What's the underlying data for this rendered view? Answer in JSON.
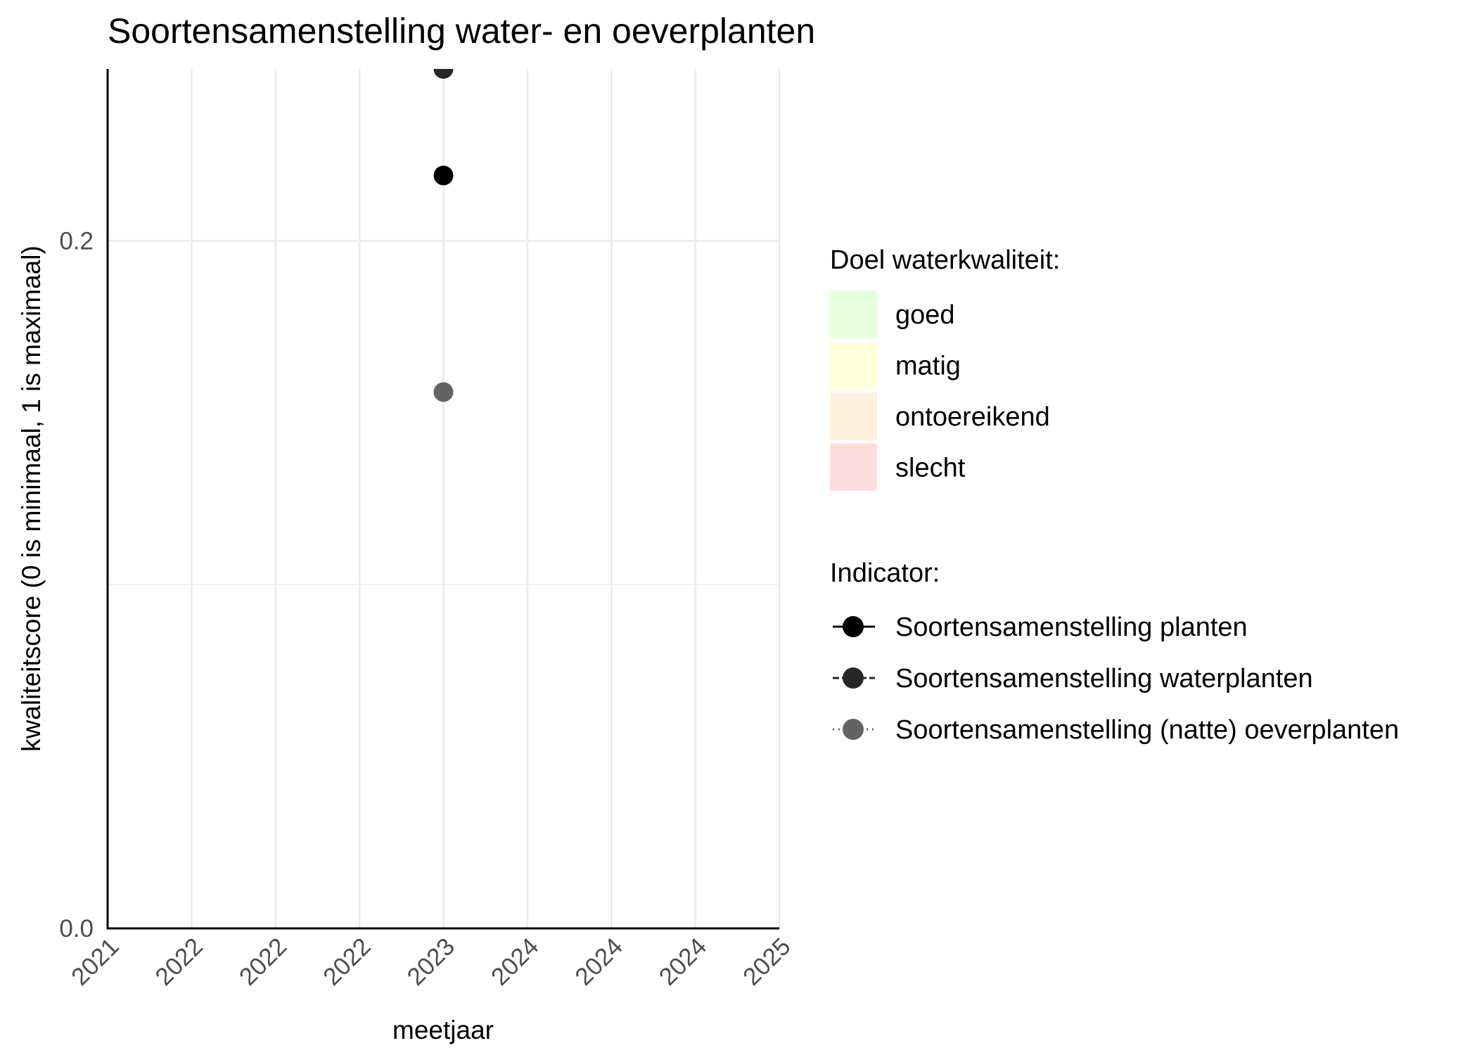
{
  "chart_data": {
    "type": "scatter",
    "title": "Soortensamenstelling water- en oeverplanten",
    "xlabel": "meetjaar",
    "ylabel": "kwaliteitscore (0 is minimaal, 1 is maximaal)",
    "x_ticks": [
      "2021",
      "2022",
      "2022",
      "2022",
      "2023",
      "2024",
      "2024",
      "2024",
      "2025"
    ],
    "xlim": [
      2021,
      2025
    ],
    "y_ticks": [
      "0.0",
      "0.2"
    ],
    "ylim": [
      0,
      0.25
    ],
    "grid": true,
    "legend_position": "right",
    "series": [
      {
        "name": "Soortensamenstelling planten",
        "color": "#000000",
        "linetype": "solid",
        "points": [
          {
            "x": 2023,
            "y": 0.219
          }
        ]
      },
      {
        "name": "Soortensamenstelling waterplanten",
        "color": "#262626",
        "linetype": "dashed",
        "points": [
          {
            "x": 2023,
            "y": 0.25
          }
        ]
      },
      {
        "name": "Soortensamenstelling (natte) oeverplanten",
        "color": "#636363",
        "linetype": "dotted",
        "points": [
          {
            "x": 2023,
            "y": 0.156
          }
        ]
      }
    ],
    "legend_fill": {
      "title": "Doel waterkwaliteit:",
      "items": [
        {
          "label": "goed",
          "color": "#E6FFDC"
        },
        {
          "label": "matig",
          "color": "#FFFFDC"
        },
        {
          "label": "ontoereikend",
          "color": "#FFF0DC"
        },
        {
          "label": "slecht",
          "color": "#FFDCDC"
        }
      ]
    },
    "legend_indicator": {
      "title": "Indicator:"
    }
  }
}
